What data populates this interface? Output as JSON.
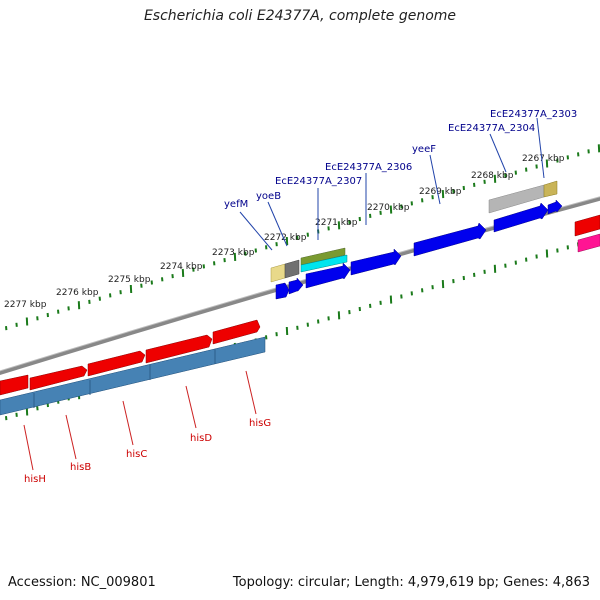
{
  "title": "Escherichia coli E24377A, complete genome",
  "footer": {
    "accession": "Accession: NC_009801",
    "summary": "Topology: circular; Length: 4,979,619 bp; Genes: 4,863"
  },
  "scale": {
    "labels": [
      "2267 kbp",
      "2268 kbp",
      "2269 kbp",
      "2270 kbp",
      "2271 kbp",
      "2272 kbp",
      "2273 kbp",
      "2274 kbp",
      "2275 kbp",
      "2276 kbp",
      "2277 kbp"
    ]
  },
  "top_gene_labels": [
    "EcE24377A_2303",
    "EcE24377A_2304",
    "yeeF",
    "EcE24377A_2306",
    "EcE24377A_2307",
    "yoeB",
    "yefM"
  ],
  "bottom_gene_labels": [
    "hisG",
    "hisD",
    "hisC",
    "hisB",
    "hisH"
  ],
  "colors": {
    "forward_cds": "#ee0000",
    "forward_cds_band": "#4682b4",
    "reverse_cds": "#0000ee",
    "pseudo": "#b0b0b0",
    "backbone": "#888888",
    "tick": "#1a7a1a",
    "top_label": "#00008b",
    "bottom_label": "#cc0000",
    "magenta_feature": "#ff1493"
  }
}
